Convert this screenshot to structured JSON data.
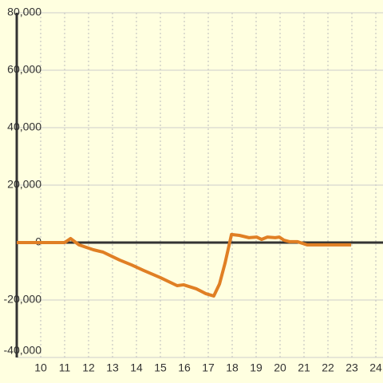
{
  "chart_data": {
    "type": "line",
    "x": [
      9,
      11,
      11.25,
      11.6,
      12.2,
      12.6,
      12.95,
      13.3,
      13.8,
      14.3,
      15,
      15.7,
      15.97,
      16.5,
      16.9,
      17.23,
      17.47,
      17.7,
      17.97,
      18.3,
      18.7,
      19.03,
      19.23,
      19.47,
      19.8,
      19.97,
      20.17,
      20.4,
      20.73,
      21.13,
      21.47,
      22.97
    ],
    "values": [
      0,
      0,
      1400,
      -800,
      -2500,
      -3300,
      -4700,
      -6100,
      -7800,
      -9700,
      -12200,
      -15000,
      -14700,
      -16100,
      -17800,
      -18600,
      -14400,
      -7200,
      2800,
      2500,
      1700,
      1900,
      1100,
      1900,
      1700,
      1900,
      800,
      300,
      300,
      -800,
      -800,
      -800
    ],
    "color": "#e07f24",
    "xlim": [
      9,
      24.3
    ],
    "xticks": [
      10,
      11,
      12,
      13,
      14,
      15,
      16,
      17,
      18,
      19,
      20,
      21,
      22,
      23,
      24
    ],
    "ylim": [
      -40000,
      80000
    ],
    "yticks": [
      {
        "value": -40000,
        "label": "-40,000"
      },
      {
        "value": -20000,
        "label": "-20,000"
      },
      0,
      {
        "value": 20000,
        "label": "20,000"
      },
      {
        "value": 40000,
        "label": "40,000"
      },
      {
        "value": 60000,
        "label": "60,000"
      },
      {
        "value": 80000,
        "label": "80,000"
      }
    ],
    "grid": true
  }
}
